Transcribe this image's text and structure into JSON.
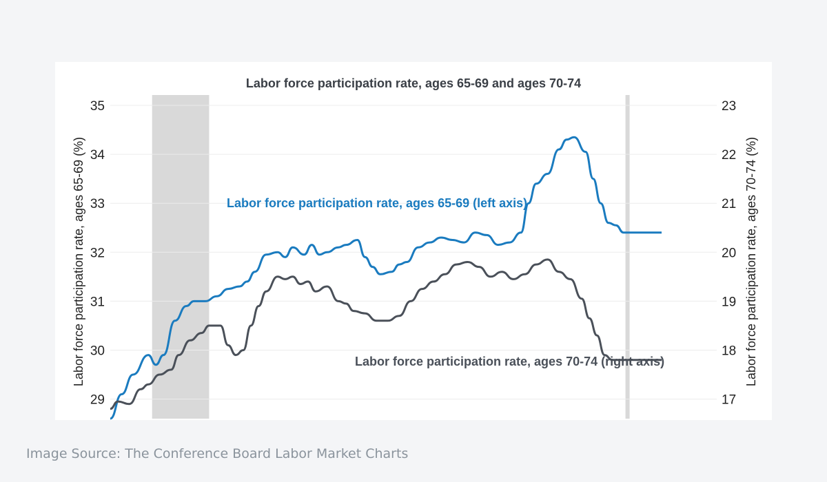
{
  "source_caption": "Image Source: The Conference Board Labor Market Charts",
  "chart_data": {
    "type": "line",
    "title": "Labor force participation rate, ages 65-69 and ages 70-74",
    "y_left": {
      "label": "Labor force participation rate, ages 65-69 (%)",
      "range": [
        28.6,
        35.0
      ],
      "ticks": [
        29,
        30,
        31,
        32,
        33,
        34,
        35
      ]
    },
    "y_right": {
      "label": "Labor force participation rate, ages 70-74 (%)",
      "range": [
        16.6,
        23.0
      ],
      "ticks": [
        17,
        18,
        19,
        20,
        21,
        22,
        23
      ]
    },
    "grid": true,
    "shaded_regions": [
      {
        "start": 0.11,
        "end": 0.26
      },
      {
        "start": 1.355,
        "end": 1.365
      }
    ],
    "series": [
      {
        "name": "Labor force participation rate, ages 65-69 (left axis)",
        "axis": "left",
        "color": "#1a7bbf",
        "x": [
          0.0,
          0.03,
          0.06,
          0.1,
          0.12,
          0.14,
          0.17,
          0.2,
          0.22,
          0.25,
          0.28,
          0.31,
          0.34,
          0.36,
          0.38,
          0.41,
          0.44,
          0.46,
          0.48,
          0.51,
          0.53,
          0.55,
          0.57,
          0.6,
          0.62,
          0.65,
          0.67,
          0.69,
          0.71,
          0.74,
          0.76,
          0.78,
          0.81,
          0.84,
          0.87,
          0.9,
          0.93,
          0.96,
          0.99,
          1.02,
          1.05,
          1.08,
          1.1,
          1.12,
          1.15,
          1.18,
          1.2,
          1.22,
          1.25,
          1.27,
          1.29,
          1.31,
          1.33,
          1.35,
          1.37,
          1.39,
          1.41,
          1.43,
          1.45
        ],
        "values": [
          28.6,
          29.1,
          29.5,
          29.9,
          29.7,
          29.9,
          30.6,
          30.9,
          31.0,
          31.0,
          31.1,
          31.25,
          31.3,
          31.4,
          31.6,
          31.95,
          32.0,
          31.9,
          32.1,
          31.95,
          32.15,
          31.95,
          32.0,
          32.1,
          32.15,
          32.25,
          31.9,
          31.7,
          31.55,
          31.6,
          31.75,
          31.8,
          32.1,
          32.2,
          32.3,
          32.25,
          32.2,
          32.4,
          32.35,
          32.15,
          32.2,
          32.4,
          33.0,
          33.4,
          33.6,
          34.1,
          34.3,
          34.35,
          34.05,
          33.5,
          33.0,
          32.6,
          32.55,
          32.4,
          32.4,
          32.4,
          32.4,
          32.4,
          32.4
        ]
      },
      {
        "name": "Labor force participation rate, ages 70-74 (right axis)",
        "axis": "right",
        "color": "#4a5059",
        "x": [
          0.0,
          0.02,
          0.05,
          0.08,
          0.1,
          0.13,
          0.16,
          0.18,
          0.21,
          0.24,
          0.26,
          0.29,
          0.31,
          0.33,
          0.35,
          0.37,
          0.39,
          0.41,
          0.44,
          0.46,
          0.48,
          0.5,
          0.52,
          0.54,
          0.57,
          0.6,
          0.62,
          0.64,
          0.67,
          0.7,
          0.73,
          0.76,
          0.79,
          0.82,
          0.85,
          0.88,
          0.91,
          0.94,
          0.97,
          1.0,
          1.03,
          1.06,
          1.09,
          1.12,
          1.15,
          1.18,
          1.21,
          1.24,
          1.26,
          1.28,
          1.3,
          1.32,
          1.34,
          1.36,
          1.38,
          1.41,
          1.43,
          1.45
        ],
        "values": [
          16.8,
          16.95,
          16.9,
          17.2,
          17.3,
          17.5,
          17.6,
          17.9,
          18.2,
          18.35,
          18.5,
          18.5,
          18.1,
          17.9,
          18.0,
          18.5,
          18.9,
          19.2,
          19.5,
          19.45,
          19.5,
          19.35,
          19.4,
          19.2,
          19.3,
          19.0,
          18.95,
          18.8,
          18.75,
          18.6,
          18.6,
          18.7,
          19.0,
          19.25,
          19.4,
          19.55,
          19.75,
          19.8,
          19.7,
          19.5,
          19.6,
          19.45,
          19.55,
          19.75,
          19.85,
          19.6,
          19.45,
          19.05,
          18.65,
          18.3,
          17.9,
          17.8,
          17.8,
          17.8,
          17.8,
          17.8,
          17.8,
          17.8
        ]
      }
    ],
    "annotations": [
      {
        "text": "Labor force participation rate, ages 65-69 (left axis)",
        "series": 0
      },
      {
        "text": "Labor force participation rate, ages 70-74 (right axis)",
        "series": 1
      }
    ]
  }
}
